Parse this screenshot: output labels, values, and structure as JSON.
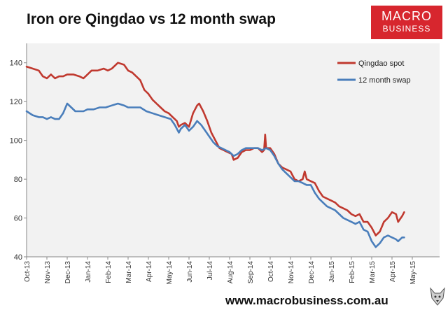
{
  "header": {
    "title": "Iron ore Qingdao vs 12 month swap"
  },
  "logo": {
    "line1": "MACRO",
    "line2": "BUSINESS",
    "color": "#d7262e"
  },
  "footer": {
    "url": "www.macrobusiness.com.au",
    "mascot_icon": "wolf-icon"
  },
  "chart_data": {
    "type": "line",
    "title": "Iron ore Qingdao vs 12 month swap",
    "xlabel": "",
    "ylabel": "",
    "ylim": [
      40,
      150
    ],
    "yticks": [
      40,
      60,
      80,
      100,
      120,
      140
    ],
    "x_tick_labels": [
      "Oct-13",
      "Nov-13",
      "Dec-13",
      "Jan-14",
      "Feb-14",
      "Mar-14",
      "Apr-14",
      "May-14",
      "Jun-14",
      "Jul-14",
      "Aug-14",
      "Sep-14",
      "Oct-14",
      "Nov-14",
      "Dec-14",
      "Jan-15",
      "Feb-15",
      "Mar-15",
      "Apr-15",
      "May-15"
    ],
    "grid": false,
    "legend": "top-right",
    "series": [
      {
        "name": "Qingdao spot",
        "color": "#c0392f",
        "points": [
          [
            0,
            138
          ],
          [
            0.3,
            137
          ],
          [
            0.6,
            136
          ],
          [
            0.8,
            133
          ],
          [
            1.0,
            132
          ],
          [
            1.2,
            134
          ],
          [
            1.4,
            132
          ],
          [
            1.6,
            133
          ],
          [
            1.8,
            133
          ],
          [
            2.0,
            134
          ],
          [
            2.3,
            134
          ],
          [
            2.6,
            133
          ],
          [
            2.8,
            132
          ],
          [
            3.0,
            134
          ],
          [
            3.2,
            136
          ],
          [
            3.5,
            136
          ],
          [
            3.8,
            137
          ],
          [
            4.0,
            136
          ],
          [
            4.2,
            137
          ],
          [
            4.5,
            140
          ],
          [
            4.8,
            139
          ],
          [
            5.0,
            136
          ],
          [
            5.2,
            135
          ],
          [
            5.4,
            133
          ],
          [
            5.6,
            131
          ],
          [
            5.8,
            126
          ],
          [
            6.0,
            124
          ],
          [
            6.2,
            121
          ],
          [
            6.4,
            119
          ],
          [
            6.6,
            117
          ],
          [
            6.8,
            115
          ],
          [
            7.0,
            114
          ],
          [
            7.2,
            112
          ],
          [
            7.4,
            110
          ],
          [
            7.5,
            107
          ],
          [
            7.6,
            108
          ],
          [
            7.8,
            109
          ],
          [
            8.0,
            107
          ],
          [
            8.2,
            114
          ],
          [
            8.4,
            118
          ],
          [
            8.5,
            119
          ],
          [
            8.7,
            115
          ],
          [
            8.9,
            110
          ],
          [
            9.1,
            104
          ],
          [
            9.3,
            100
          ],
          [
            9.5,
            96
          ],
          [
            9.7,
            95
          ],
          [
            9.9,
            94
          ],
          [
            10.1,
            93
          ],
          [
            10.2,
            90
          ],
          [
            10.4,
            91
          ],
          [
            10.6,
            94
          ],
          [
            10.8,
            95
          ],
          [
            11.0,
            95
          ],
          [
            11.2,
            96
          ],
          [
            11.4,
            96
          ],
          [
            11.6,
            94
          ],
          [
            11.7,
            95
          ],
          [
            11.75,
            103
          ],
          [
            11.8,
            96
          ],
          [
            12.0,
            96
          ],
          [
            12.2,
            93
          ],
          [
            12.4,
            88
          ],
          [
            12.6,
            86
          ],
          [
            12.8,
            85
          ],
          [
            13.0,
            84
          ],
          [
            13.2,
            80
          ],
          [
            13.4,
            79
          ],
          [
            13.6,
            80
          ],
          [
            13.7,
            84
          ],
          [
            13.8,
            80
          ],
          [
            14.0,
            79
          ],
          [
            14.2,
            78
          ],
          [
            14.4,
            74
          ],
          [
            14.6,
            71
          ],
          [
            14.8,
            70
          ],
          [
            15.0,
            69
          ],
          [
            15.2,
            68
          ],
          [
            15.4,
            66
          ],
          [
            15.6,
            65
          ],
          [
            15.8,
            64
          ],
          [
            16.0,
            62
          ],
          [
            16.2,
            61
          ],
          [
            16.4,
            62
          ],
          [
            16.6,
            58
          ],
          [
            16.8,
            58
          ],
          [
            17.0,
            55
          ],
          [
            17.2,
            51
          ],
          [
            17.4,
            53
          ],
          [
            17.6,
            58
          ],
          [
            17.8,
            60
          ],
          [
            18.0,
            63
          ],
          [
            18.2,
            62
          ],
          [
            18.3,
            58
          ],
          [
            18.5,
            61
          ],
          [
            18.6,
            63
          ]
        ]
      },
      {
        "name": "12 month swap",
        "color": "#4a7ebb",
        "points": [
          [
            0,
            115
          ],
          [
            0.3,
            113
          ],
          [
            0.6,
            112
          ],
          [
            0.8,
            112
          ],
          [
            1.0,
            111
          ],
          [
            1.2,
            112
          ],
          [
            1.4,
            111
          ],
          [
            1.6,
            111
          ],
          [
            1.8,
            114
          ],
          [
            2.0,
            119
          ],
          [
            2.2,
            117
          ],
          [
            2.4,
            115
          ],
          [
            2.6,
            115
          ],
          [
            2.8,
            115
          ],
          [
            3.0,
            116
          ],
          [
            3.3,
            116
          ],
          [
            3.6,
            117
          ],
          [
            3.9,
            117
          ],
          [
            4.2,
            118
          ],
          [
            4.5,
            119
          ],
          [
            4.8,
            118
          ],
          [
            5.0,
            117
          ],
          [
            5.3,
            117
          ],
          [
            5.6,
            117
          ],
          [
            5.9,
            115
          ],
          [
            6.2,
            114
          ],
          [
            6.5,
            113
          ],
          [
            6.8,
            112
          ],
          [
            7.1,
            111
          ],
          [
            7.3,
            108
          ],
          [
            7.5,
            104
          ],
          [
            7.6,
            106
          ],
          [
            7.8,
            108
          ],
          [
            8.0,
            105
          ],
          [
            8.2,
            107
          ],
          [
            8.4,
            110
          ],
          [
            8.6,
            108
          ],
          [
            8.8,
            105
          ],
          [
            9.0,
            102
          ],
          [
            9.2,
            99
          ],
          [
            9.4,
            97
          ],
          [
            9.6,
            96
          ],
          [
            9.8,
            95
          ],
          [
            10.0,
            94
          ],
          [
            10.2,
            92
          ],
          [
            10.4,
            93
          ],
          [
            10.6,
            95
          ],
          [
            10.8,
            96
          ],
          [
            11.0,
            96
          ],
          [
            11.2,
            96
          ],
          [
            11.4,
            96
          ],
          [
            11.6,
            95
          ],
          [
            11.8,
            96
          ],
          [
            12.0,
            95
          ],
          [
            12.2,
            92
          ],
          [
            12.4,
            88
          ],
          [
            12.6,
            85
          ],
          [
            12.8,
            83
          ],
          [
            13.0,
            81
          ],
          [
            13.2,
            79
          ],
          [
            13.4,
            79
          ],
          [
            13.6,
            78
          ],
          [
            13.8,
            77
          ],
          [
            14.0,
            77
          ],
          [
            14.2,
            73
          ],
          [
            14.4,
            70
          ],
          [
            14.6,
            68
          ],
          [
            14.8,
            66
          ],
          [
            15.0,
            65
          ],
          [
            15.2,
            64
          ],
          [
            15.4,
            62
          ],
          [
            15.6,
            60
          ],
          [
            15.8,
            59
          ],
          [
            16.0,
            58
          ],
          [
            16.2,
            57
          ],
          [
            16.4,
            58
          ],
          [
            16.6,
            54
          ],
          [
            16.8,
            53
          ],
          [
            17.0,
            48
          ],
          [
            17.2,
            45
          ],
          [
            17.4,
            47
          ],
          [
            17.6,
            50
          ],
          [
            17.8,
            51
          ],
          [
            18.0,
            50
          ],
          [
            18.2,
            49
          ],
          [
            18.3,
            48
          ],
          [
            18.5,
            50
          ],
          [
            18.6,
            50
          ]
        ]
      }
    ]
  }
}
